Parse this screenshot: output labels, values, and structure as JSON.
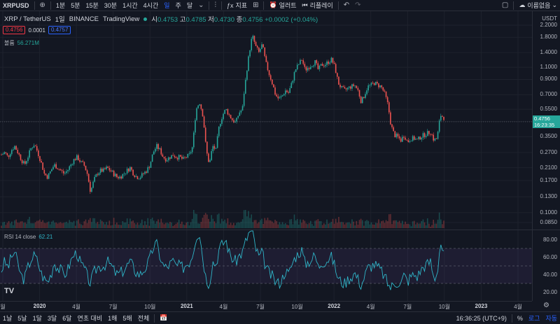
{
  "toolbar": {
    "symbol": "XRPUSD",
    "intervals": [
      "1분",
      "5분",
      "15분",
      "30분",
      "1시간",
      "4시간",
      "일",
      "주",
      "달"
    ],
    "active_interval": "일",
    "indicator_label": "지표",
    "alert_label": "얼러트",
    "replay_label": "리플레이",
    "account_label": "이름없음"
  },
  "legend": {
    "title": "XRP / TetherUS",
    "interval": "1일",
    "exchange": "BINANCE",
    "source": "TradingView",
    "open_label": "시",
    "open": "0.4753",
    "high_label": "고",
    "high": "0.4785",
    "low_label": "저",
    "low": "0.4730",
    "close_label": "종",
    "close": "0.4756",
    "change": "+0.0002 (+0.04%)",
    "sell_price": "0.4756",
    "spread": "0.0001",
    "buy_price": "0.4757",
    "volume_label": "볼륨",
    "volume": "56.271M",
    "rsi_label": "RSI 14 close",
    "rsi_value": "62.21"
  },
  "price_axis": {
    "currency": "USDT",
    "labels": [
      "2.2000",
      "1.8000",
      "1.4000",
      "1.1000",
      "0.9000",
      "0.7000",
      "0.5500",
      "0.4500",
      "0.3500",
      "0.2700",
      "0.2100",
      "0.1700",
      "0.1300",
      "0.1000",
      "0.0850"
    ],
    "current_price": "0.4756",
    "countdown": "16:23:35"
  },
  "rsi_axis": {
    "labels": [
      "80.00",
      "60.00",
      "40.00",
      "20.00"
    ]
  },
  "time_axis": {
    "labels": [
      {
        "text": "월",
        "bold": false
      },
      {
        "text": "2020",
        "bold": true
      },
      {
        "text": "4월",
        "bold": false
      },
      {
        "text": "7월",
        "bold": false
      },
      {
        "text": "10월",
        "bold": false
      },
      {
        "text": "2021",
        "bold": true
      },
      {
        "text": "4월",
        "bold": false
      },
      {
        "text": "7월",
        "bold": false
      },
      {
        "text": "10월",
        "bold": false
      },
      {
        "text": "2022",
        "bold": true
      },
      {
        "text": "4월",
        "bold": false
      },
      {
        "text": "7월",
        "bold": false
      },
      {
        "text": "10월",
        "bold": false
      },
      {
        "text": "2023",
        "bold": true
      },
      {
        "text": "4월",
        "bold": false
      }
    ]
  },
  "bottom_bar": {
    "ranges": [
      "1날",
      "5날",
      "1달",
      "3달",
      "6달",
      "연초 대비",
      "1해",
      "5해",
      "전체"
    ],
    "clock": "16:36:25 (UTC+9)",
    "percent_label": "%",
    "log_label": "로그",
    "auto_label": "자동"
  },
  "chart_data": {
    "type": "candlestick",
    "log_scale": true,
    "closes": [
      0.26,
      0.27,
      0.25,
      0.28,
      0.3,
      0.27,
      0.24,
      0.22,
      0.25,
      0.29,
      0.31,
      0.27,
      0.23,
      0.19,
      0.18,
      0.2,
      0.22,
      0.21,
      0.2,
      0.19,
      0.2,
      0.22,
      0.24,
      0.25,
      0.23,
      0.22,
      0.19,
      0.14,
      0.17,
      0.19,
      0.2,
      0.2,
      0.21,
      0.2,
      0.19,
      0.18,
      0.18,
      0.19,
      0.2,
      0.21,
      0.19,
      0.18,
      0.18,
      0.19,
      0.2,
      0.22,
      0.27,
      0.3,
      0.28,
      0.25,
      0.24,
      0.25,
      0.26,
      0.25,
      0.25,
      0.24,
      0.25,
      0.26,
      0.3,
      0.55,
      0.62,
      0.5,
      0.28,
      0.22,
      0.3,
      0.28,
      0.42,
      0.5,
      0.55,
      0.5,
      0.46,
      0.44,
      0.52,
      0.55,
      0.9,
      1.35,
      1.85,
      1.55,
      1.4,
      1.6,
      1.2,
      1.0,
      0.85,
      0.7,
      0.65,
      0.68,
      0.75,
      0.72,
      0.85,
      1.05,
      1.15,
      1.25,
      1.05,
      1.1,
      1.15,
      1.2,
      1.05,
      1.15,
      1.15,
      1.2,
      1.25,
      1.1,
      0.85,
      0.78,
      0.75,
      0.78,
      0.8,
      0.82,
      0.75,
      0.62,
      0.7,
      0.8,
      0.82,
      0.85,
      0.82,
      0.8,
      0.72,
      0.6,
      0.42,
      0.36,
      0.35,
      0.33,
      0.36,
      0.32,
      0.34,
      0.34,
      0.33,
      0.35,
      0.36,
      0.37,
      0.38,
      0.33,
      0.34,
      0.5,
      0.48
    ],
    "volume_peak_labels": [],
    "rsi": [
      45,
      55,
      48,
      60,
      66,
      52,
      38,
      35,
      48,
      58,
      62,
      55,
      42,
      35,
      32,
      40,
      55,
      48,
      45,
      40,
      45,
      55,
      63,
      65,
      52,
      48,
      38,
      30,
      42,
      48,
      50,
      50,
      55,
      52,
      45,
      40,
      42,
      45,
      50,
      55,
      48,
      42,
      40,
      45,
      50,
      58,
      72,
      75,
      62,
      50,
      48,
      52,
      55,
      50,
      50,
      48,
      52,
      55,
      65,
      85,
      88,
      60,
      35,
      30,
      55,
      52,
      70,
      75,
      80,
      65,
      58,
      55,
      62,
      65,
      78,
      88,
      92,
      70,
      60,
      65,
      50,
      42,
      38,
      32,
      30,
      35,
      45,
      40,
      52,
      60,
      65,
      68,
      52,
      55,
      58,
      62,
      48,
      55,
      55,
      58,
      60,
      50,
      35,
      32,
      30,
      35,
      38,
      42,
      35,
      28,
      38,
      48,
      50,
      52,
      48,
      45,
      38,
      30,
      25,
      30,
      32,
      30,
      40,
      32,
      38,
      40,
      38,
      45,
      50,
      52,
      55,
      35,
      42,
      78,
      62
    ],
    "rsi_bands": [
      70,
      50,
      30
    ],
    "price_ylim": [
      0.085,
      2.2
    ],
    "rsi_ylim": [
      10,
      90
    ]
  }
}
